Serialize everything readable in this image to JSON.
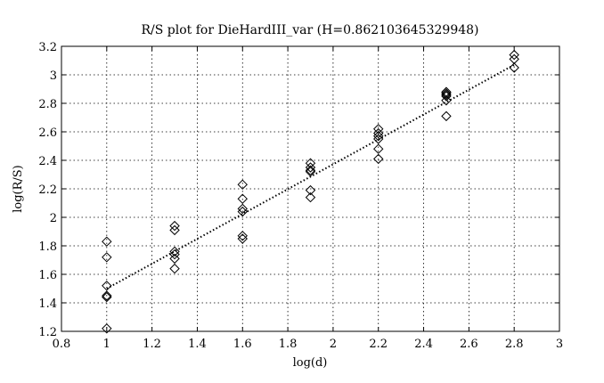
{
  "chart_data": {
    "type": "scatter",
    "title": "R/S plot for DieHardIII_var (H=0.862103645329948)",
    "xlabel": "log(d)",
    "ylabel": "log(R/S)",
    "xlim": [
      0.8,
      3.0
    ],
    "ylim": [
      1.2,
      3.2
    ],
    "xticks": [
      "0.8",
      "1",
      "1.2",
      "1.4",
      "1.6",
      "1.8",
      "2",
      "2.2",
      "2.4",
      "2.6",
      "2.8",
      "3"
    ],
    "yticks": [
      "1.2",
      "1.4",
      "1.6",
      "1.8",
      "2",
      "2.2",
      "2.4",
      "2.6",
      "2.8",
      "3",
      "3.2"
    ],
    "grid": true,
    "marker": "diamond",
    "series": [
      {
        "points": [
          [
            1.0,
            1.83
          ],
          [
            1.0,
            1.72
          ],
          [
            1.0,
            1.52
          ],
          [
            1.0,
            1.45
          ],
          [
            1.0,
            1.44
          ],
          [
            1.0,
            1.22
          ],
          [
            1.3,
            1.94
          ],
          [
            1.3,
            1.91
          ],
          [
            1.3,
            1.76
          ],
          [
            1.3,
            1.74
          ],
          [
            1.3,
            1.71
          ],
          [
            1.3,
            1.64
          ],
          [
            1.6,
            2.23
          ],
          [
            1.6,
            2.13
          ],
          [
            1.6,
            2.06
          ],
          [
            1.6,
            2.04
          ],
          [
            1.6,
            1.87
          ],
          [
            1.6,
            1.85
          ],
          [
            1.9,
            2.38
          ],
          [
            1.9,
            2.35
          ],
          [
            1.9,
            2.33
          ],
          [
            1.9,
            2.32
          ],
          [
            1.9,
            2.19
          ],
          [
            1.9,
            2.14
          ],
          [
            2.2,
            2.62
          ],
          [
            2.2,
            2.59
          ],
          [
            2.2,
            2.57
          ],
          [
            2.2,
            2.55
          ],
          [
            2.2,
            2.48
          ],
          [
            2.2,
            2.41
          ],
          [
            2.5,
            2.88
          ],
          [
            2.5,
            2.87
          ],
          [
            2.5,
            2.86
          ],
          [
            2.5,
            2.85
          ],
          [
            2.5,
            2.82
          ],
          [
            2.5,
            2.71
          ],
          [
            2.8,
            3.14
          ],
          [
            2.8,
            3.11
          ],
          [
            2.8,
            3.05
          ]
        ]
      },
      {
        "type": "line",
        "style": "dotted",
        "points": [
          [
            1.0,
            1.5
          ],
          [
            2.8,
            3.07
          ]
        ]
      }
    ]
  }
}
